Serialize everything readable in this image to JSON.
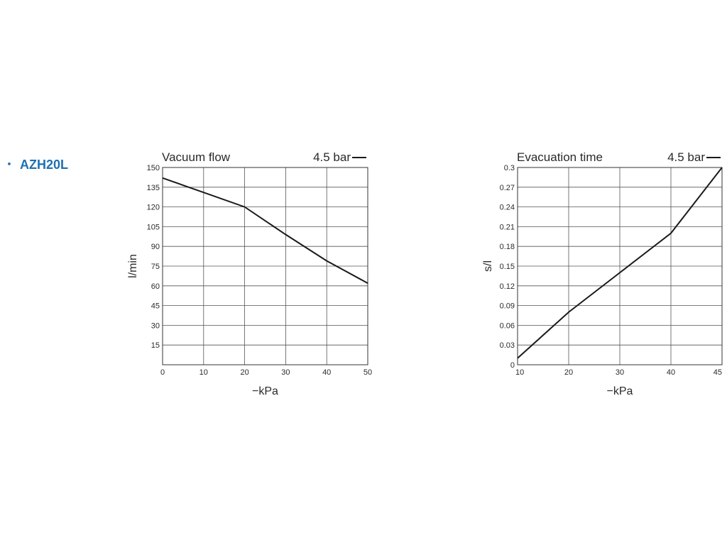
{
  "product": {
    "bullet": "・",
    "name": "AZH20L"
  },
  "chart_data": [
    {
      "type": "line",
      "title": "Vacuum flow",
      "legend": "4.5 bar",
      "legend_placement": "top-right",
      "line_color": "#1a1a1a",
      "grid": true,
      "xlabel": "−kPa",
      "ylabel": "l/min",
      "xlim": [
        0,
        50
      ],
      "ylim": [
        0,
        150
      ],
      "x_ticks": [
        0,
        10,
        20,
        30,
        40,
        50
      ],
      "y_ticks": [
        15,
        30,
        45,
        60,
        75,
        90,
        105,
        120,
        135,
        150
      ],
      "y_tick_labels": [
        "15",
        "30",
        "45",
        "60",
        "75",
        "90",
        "105",
        "120",
        "135",
        "150"
      ],
      "series": [
        {
          "name": "4.5 bar",
          "x": [
            0,
            10,
            20,
            30,
            40,
            50
          ],
          "y": [
            142,
            131,
            120,
            99,
            79,
            62
          ]
        }
      ]
    },
    {
      "type": "line",
      "title": "Evacuation time",
      "legend": "4.5 bar",
      "legend_placement": "top-right",
      "line_color": "#1a1a1a",
      "grid": true,
      "xlabel": "−kPa",
      "ylabel": "s/l",
      "xlim": [
        10,
        45
      ],
      "ylim": [
        0,
        0.3
      ],
      "x_ticks": [
        10,
        20,
        30,
        40,
        45
      ],
      "y_ticks": [
        0,
        0.03,
        0.06,
        0.09,
        0.12,
        0.15,
        0.18,
        0.21,
        0.24,
        0.27,
        0.3
      ],
      "y_tick_labels": [
        "0",
        "0.03",
        "0.06",
        "0.09",
        "0.12",
        "0.15",
        "0.18",
        "0.21",
        "0.24",
        "0.27",
        "0.3"
      ],
      "series": [
        {
          "name": "4.5 bar",
          "x": [
            10,
            20,
            30,
            40,
            45
          ],
          "y": [
            0.01,
            0.08,
            0.14,
            0.2,
            0.3
          ]
        }
      ]
    }
  ]
}
